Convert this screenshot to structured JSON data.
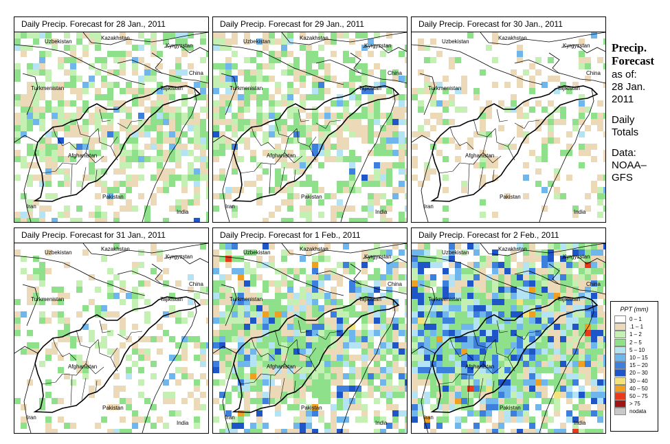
{
  "panels": [
    {
      "title": "Daily Precip. Forecast for  28 Jan., 2011"
    },
    {
      "title": "Daily Precip. Forecast for  29 Jan., 2011"
    },
    {
      "title": "Daily Precip. Forecast for  30 Jan., 2011"
    },
    {
      "title": "Daily Precip. Forecast for  31 Jan., 2011"
    },
    {
      "title": "Daily Precip. Forecast for  1 Feb., 2011"
    },
    {
      "title": "Daily Precip. Forecast for  2 Feb., 2011"
    }
  ],
  "countries": {
    "uzbekistan": "Uzbekistan",
    "kazakhstan": "Kazakhstan",
    "kyrgyzstan": "Kyrgyzstan",
    "china": "China",
    "turkmenistan": "Turkmenistan",
    "tajikistan": "Tajikistan",
    "afghanistan": "Afghanistan",
    "pakistan": "Pakistan",
    "iran": "Iran",
    "india": "India"
  },
  "sidebar": {
    "title_line1": "Precip.",
    "title_line2": "Forecast",
    "asof": "as of:",
    "date_line1": "28 Jan.",
    "date_line2": "2011",
    "totals_line1": "Daily",
    "totals_line2": "Totals",
    "data_line1": "Data:",
    "data_line2": "NOAA–",
    "data_line3": "GFS"
  },
  "legend": {
    "title": "PPT (mm)",
    "items": [
      {
        "label": "0 – 1",
        "color": "#ffffff"
      },
      {
        "label": ".1 – 1",
        "color": "#ecd9b8"
      },
      {
        "label": "1 – 2",
        "color": "#c4f0b4"
      },
      {
        "label": "2 – 5",
        "color": "#8ee08a"
      },
      {
        "label": "5 – 10",
        "color": "#b4e4f4"
      },
      {
        "label": "10 – 15",
        "color": "#6fb6ec"
      },
      {
        "label": "15 – 20",
        "color": "#3c7fdc"
      },
      {
        "label": "20 – 30",
        "color": "#1e56c8"
      },
      {
        "label": "30 – 40",
        "color": "#f4e37a"
      },
      {
        "label": "40 – 50",
        "color": "#f0a020"
      },
      {
        "label": "50 – 75",
        "color": "#e83a18"
      },
      {
        "label": "> 75",
        "color": "#a01414"
      },
      {
        "label": "nodata",
        "color": "#c8c8c8"
      }
    ]
  },
  "precip": [
    {
      "tan": 0.22,
      "green": 0.16,
      "lgreen": 0.14,
      "lblue": 0.05,
      "blue": 0.01,
      "warm": 0
    },
    {
      "tan": 0.2,
      "green": 0.18,
      "lgreen": 0.1,
      "lblue": 0.05,
      "blue": 0.015,
      "warm": 0
    },
    {
      "tan": 0.14,
      "green": 0.06,
      "lgreen": 0.05,
      "lblue": 0.01,
      "blue": 0,
      "warm": 0
    },
    {
      "tan": 0.13,
      "green": 0.08,
      "lgreen": 0.07,
      "lblue": 0.02,
      "blue": 0,
      "warm": 0
    },
    {
      "tan": 0.18,
      "green": 0.2,
      "lgreen": 0.1,
      "lblue": 0.1,
      "blue": 0.06,
      "warm": 0.008
    },
    {
      "tan": 0.18,
      "green": 0.18,
      "lgreen": 0.1,
      "lblue": 0.16,
      "blue": 0.12,
      "warm": 0.02
    }
  ]
}
